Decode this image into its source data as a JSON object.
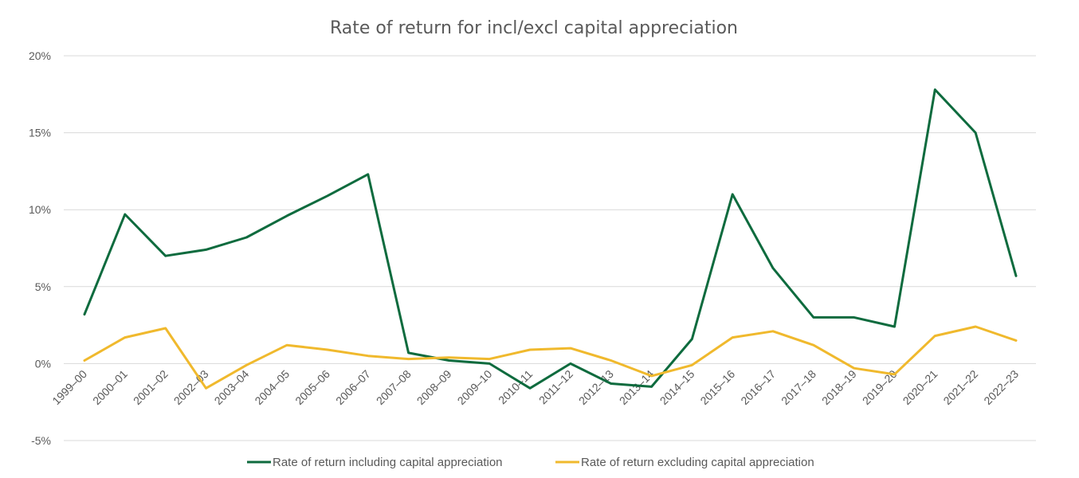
{
  "chart_data": {
    "type": "line",
    "title": "Rate of return for incl/excl capital appreciation",
    "xlabel": "",
    "ylabel": "",
    "categories": [
      "1999–00",
      "2000–01",
      "2001–02",
      "2002–03",
      "2003–04",
      "2004–05",
      "2005–06",
      "2006–07",
      "2007–08",
      "2008–09",
      "2009–10",
      "2010–11",
      "2011–12",
      "2012–13",
      "2013–14",
      "2014–15",
      "2015–16",
      "2016–17",
      "2017–18",
      "2018–19",
      "2019–20",
      "2020–21",
      "2021–22",
      "2022–23"
    ],
    "ylim": [
      -5,
      20
    ],
    "yticks": [
      -5,
      0,
      5,
      10,
      15,
      20
    ],
    "ytick_labels": [
      "-5%",
      "0%",
      "5%",
      "10%",
      "15%",
      "20%"
    ],
    "grid": true,
    "legend_position": "bottom",
    "series": [
      {
        "name": "Rate of return including capital appreciation",
        "color": "#0e6b3e",
        "values": [
          3.2,
          9.7,
          7.0,
          7.4,
          8.2,
          9.6,
          10.9,
          12.3,
          0.7,
          0.2,
          0.0,
          -1.6,
          0.0,
          -1.3,
          -1.5,
          1.6,
          11.0,
          6.2,
          3.0,
          3.0,
          2.4,
          17.8,
          15.0,
          5.7
        ]
      },
      {
        "name": "Rate of return excluding capital appreciation",
        "color": "#f0b92d",
        "values": [
          0.2,
          1.7,
          2.3,
          -1.6,
          -0.1,
          1.2,
          0.9,
          0.5,
          0.3,
          0.4,
          0.3,
          0.9,
          1.0,
          0.2,
          -0.8,
          -0.1,
          1.7,
          2.1,
          1.2,
          -0.3,
          -0.7,
          1.8,
          2.4,
          1.5
        ]
      }
    ]
  }
}
